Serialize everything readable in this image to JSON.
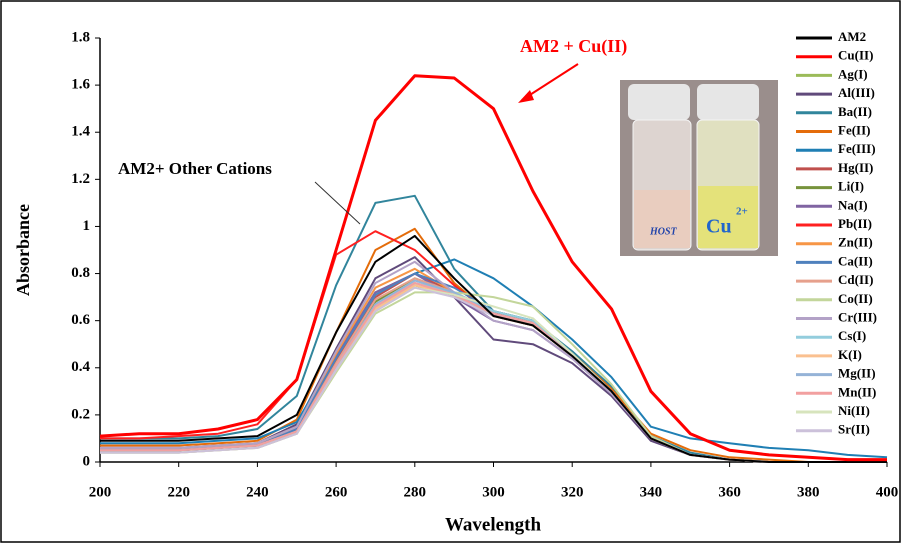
{
  "chart_data": {
    "type": "line",
    "xlabel": "Wavelength",
    "ylabel": "Absorbance",
    "annotations": [
      "AM2 + Cu(II)",
      "AM2+ Other Cations"
    ],
    "inset_labels": [
      "HOST",
      "Cu",
      "2+"
    ],
    "x": [
      200,
      210,
      220,
      230,
      240,
      250,
      260,
      270,
      280,
      290,
      300,
      310,
      320,
      330,
      340,
      350,
      360,
      370,
      380,
      390,
      400
    ],
    "xlim": [
      200,
      400
    ],
    "xticks": [
      200,
      220,
      240,
      260,
      280,
      300,
      320,
      340,
      360,
      380,
      400
    ],
    "ylim": [
      0,
      1.8
    ],
    "yticks": [
      0,
      0.2,
      0.4,
      0.6,
      0.8,
      1,
      1.2,
      1.4,
      1.6,
      1.8
    ],
    "series": [
      {
        "name": "AM2",
        "color": "#000000",
        "values": [
          0.09,
          0.09,
          0.09,
          0.1,
          0.11,
          0.2,
          0.55,
          0.85,
          0.96,
          0.78,
          0.62,
          0.58,
          0.45,
          0.3,
          0.1,
          0.03,
          0.01,
          0,
          0,
          0,
          0
        ]
      },
      {
        "name": "Cu(II)",
        "color": "#ff0000",
        "values": [
          0.11,
          0.12,
          0.12,
          0.14,
          0.18,
          0.35,
          0.9,
          1.45,
          1.64,
          1.63,
          1.5,
          1.15,
          0.85,
          0.65,
          0.3,
          0.12,
          0.05,
          0.03,
          0.02,
          0.01,
          0.01
        ]
      },
      {
        "name": "Ag(I)",
        "color": "#9bbb59",
        "values": [
          0.05,
          0.05,
          0.05,
          0.06,
          0.07,
          0.13,
          0.4,
          0.65,
          0.75,
          0.7,
          0.64,
          0.58,
          0.45,
          0.3,
          0.1,
          0.03,
          0.01,
          0,
          0,
          0,
          0
        ]
      },
      {
        "name": "Al(III)",
        "color": "#604a7b",
        "values": [
          0.06,
          0.06,
          0.06,
          0.07,
          0.08,
          0.16,
          0.48,
          0.78,
          0.87,
          0.7,
          0.52,
          0.5,
          0.42,
          0.28,
          0.09,
          0.03,
          0.01,
          0,
          0,
          0,
          0
        ]
      },
      {
        "name": "Ba(II)",
        "color": "#31859c",
        "values": [
          0.1,
          0.1,
          0.1,
          0.11,
          0.14,
          0.28,
          0.75,
          1.1,
          1.13,
          0.82,
          0.64,
          0.6,
          0.47,
          0.32,
          0.11,
          0.04,
          0.01,
          0,
          0,
          0,
          0
        ]
      },
      {
        "name": "Fe(II)",
        "color": "#e46c0a",
        "values": [
          0.07,
          0.07,
          0.07,
          0.08,
          0.09,
          0.18,
          0.55,
          0.9,
          0.99,
          0.76,
          0.62,
          0.58,
          0.46,
          0.31,
          0.12,
          0.05,
          0.02,
          0.01,
          0,
          0,
          0
        ]
      },
      {
        "name": "Fe(III)",
        "color": "#1f7fb4",
        "values": [
          0.08,
          0.08,
          0.08,
          0.09,
          0.1,
          0.17,
          0.45,
          0.72,
          0.8,
          0.86,
          0.78,
          0.66,
          0.52,
          0.36,
          0.15,
          0.1,
          0.08,
          0.06,
          0.05,
          0.03,
          0.02
        ]
      },
      {
        "name": "Hg(II)",
        "color": "#c0504d",
        "values": [
          0.05,
          0.05,
          0.05,
          0.06,
          0.07,
          0.14,
          0.43,
          0.7,
          0.8,
          0.72,
          0.63,
          0.6,
          0.46,
          0.3,
          0.1,
          0.03,
          0.01,
          0,
          0,
          0,
          0
        ]
      },
      {
        "name": "Li(I)",
        "color": "#77933c",
        "values": [
          0.05,
          0.05,
          0.05,
          0.06,
          0.07,
          0.13,
          0.42,
          0.68,
          0.78,
          0.72,
          0.64,
          0.6,
          0.46,
          0.3,
          0.1,
          0.03,
          0.01,
          0,
          0,
          0,
          0
        ]
      },
      {
        "name": "Na(I)",
        "color": "#8064a2",
        "values": [
          0.06,
          0.06,
          0.06,
          0.07,
          0.08,
          0.15,
          0.45,
          0.72,
          0.8,
          0.7,
          0.6,
          0.56,
          0.44,
          0.29,
          0.1,
          0.03,
          0.01,
          0,
          0,
          0,
          0
        ]
      },
      {
        "name": "Pb(II)",
        "color": "#ff2020",
        "values": [
          0.1,
          0.1,
          0.11,
          0.12,
          0.16,
          0.35,
          0.88,
          0.98,
          0.9,
          0.75,
          0.62,
          0.58,
          0.45,
          0.3,
          0.1,
          0.03,
          0.01,
          0,
          0,
          0,
          0
        ]
      },
      {
        "name": "Zn(II)",
        "color": "#f79646",
        "values": [
          0.06,
          0.06,
          0.06,
          0.07,
          0.08,
          0.15,
          0.46,
          0.74,
          0.82,
          0.72,
          0.62,
          0.58,
          0.45,
          0.3,
          0.1,
          0.03,
          0.01,
          0,
          0,
          0,
          0
        ]
      },
      {
        "name": "Ca(II)",
        "color": "#4f81bd",
        "values": [
          0.05,
          0.05,
          0.05,
          0.06,
          0.07,
          0.14,
          0.44,
          0.71,
          0.8,
          0.74,
          0.64,
          0.6,
          0.46,
          0.3,
          0.1,
          0.03,
          0.01,
          0,
          0,
          0,
          0
        ]
      },
      {
        "name": "Cd(II)",
        "color": "#e6a08c",
        "values": [
          0.05,
          0.05,
          0.05,
          0.06,
          0.07,
          0.13,
          0.42,
          0.69,
          0.78,
          0.72,
          0.63,
          0.59,
          0.45,
          0.3,
          0.1,
          0.03,
          0.01,
          0,
          0,
          0,
          0
        ]
      },
      {
        "name": "Co(II)",
        "color": "#c3d69b",
        "values": [
          0.04,
          0.04,
          0.04,
          0.05,
          0.06,
          0.12,
          0.38,
          0.63,
          0.72,
          0.72,
          0.7,
          0.66,
          0.5,
          0.33,
          0.11,
          0.03,
          0.01,
          0,
          0,
          0,
          0
        ]
      },
      {
        "name": "Cr(III)",
        "color": "#b3a2c7",
        "values": [
          0.06,
          0.06,
          0.06,
          0.07,
          0.08,
          0.15,
          0.47,
          0.76,
          0.85,
          0.72,
          0.6,
          0.56,
          0.44,
          0.29,
          0.1,
          0.03,
          0.01,
          0,
          0,
          0,
          0
        ]
      },
      {
        "name": "Cs(I)",
        "color": "#93cddd",
        "values": [
          0.04,
          0.04,
          0.04,
          0.05,
          0.06,
          0.12,
          0.4,
          0.66,
          0.76,
          0.72,
          0.64,
          0.6,
          0.46,
          0.3,
          0.1,
          0.03,
          0.01,
          0,
          0,
          0,
          0
        ]
      },
      {
        "name": "K(I)",
        "color": "#fac090",
        "values": [
          0.04,
          0.04,
          0.04,
          0.05,
          0.06,
          0.12,
          0.39,
          0.65,
          0.75,
          0.71,
          0.63,
          0.59,
          0.45,
          0.3,
          0.1,
          0.03,
          0.01,
          0,
          0,
          0,
          0
        ]
      },
      {
        "name": "Mg(II)",
        "color": "#95b3d7",
        "values": [
          0.05,
          0.05,
          0.05,
          0.06,
          0.07,
          0.13,
          0.41,
          0.67,
          0.77,
          0.72,
          0.63,
          0.59,
          0.45,
          0.3,
          0.1,
          0.03,
          0.01,
          0,
          0,
          0,
          0
        ]
      },
      {
        "name": "Mn(II)",
        "color": "#f2a0a0",
        "values": [
          0.05,
          0.05,
          0.05,
          0.06,
          0.07,
          0.13,
          0.41,
          0.66,
          0.76,
          0.71,
          0.63,
          0.59,
          0.45,
          0.3,
          0.1,
          0.03,
          0.01,
          0,
          0,
          0,
          0
        ]
      },
      {
        "name": "Ni(II)",
        "color": "#d7e4bd",
        "values": [
          0.04,
          0.04,
          0.04,
          0.05,
          0.06,
          0.12,
          0.39,
          0.64,
          0.74,
          0.71,
          0.66,
          0.61,
          0.46,
          0.3,
          0.1,
          0.03,
          0.01,
          0,
          0,
          0,
          0
        ]
      },
      {
        "name": "Sr(II)",
        "color": "#ccc1da",
        "values": [
          0.04,
          0.04,
          0.04,
          0.05,
          0.06,
          0.12,
          0.39,
          0.64,
          0.74,
          0.7,
          0.62,
          0.58,
          0.45,
          0.3,
          0.1,
          0.03,
          0.01,
          0,
          0,
          0,
          0
        ]
      }
    ]
  }
}
